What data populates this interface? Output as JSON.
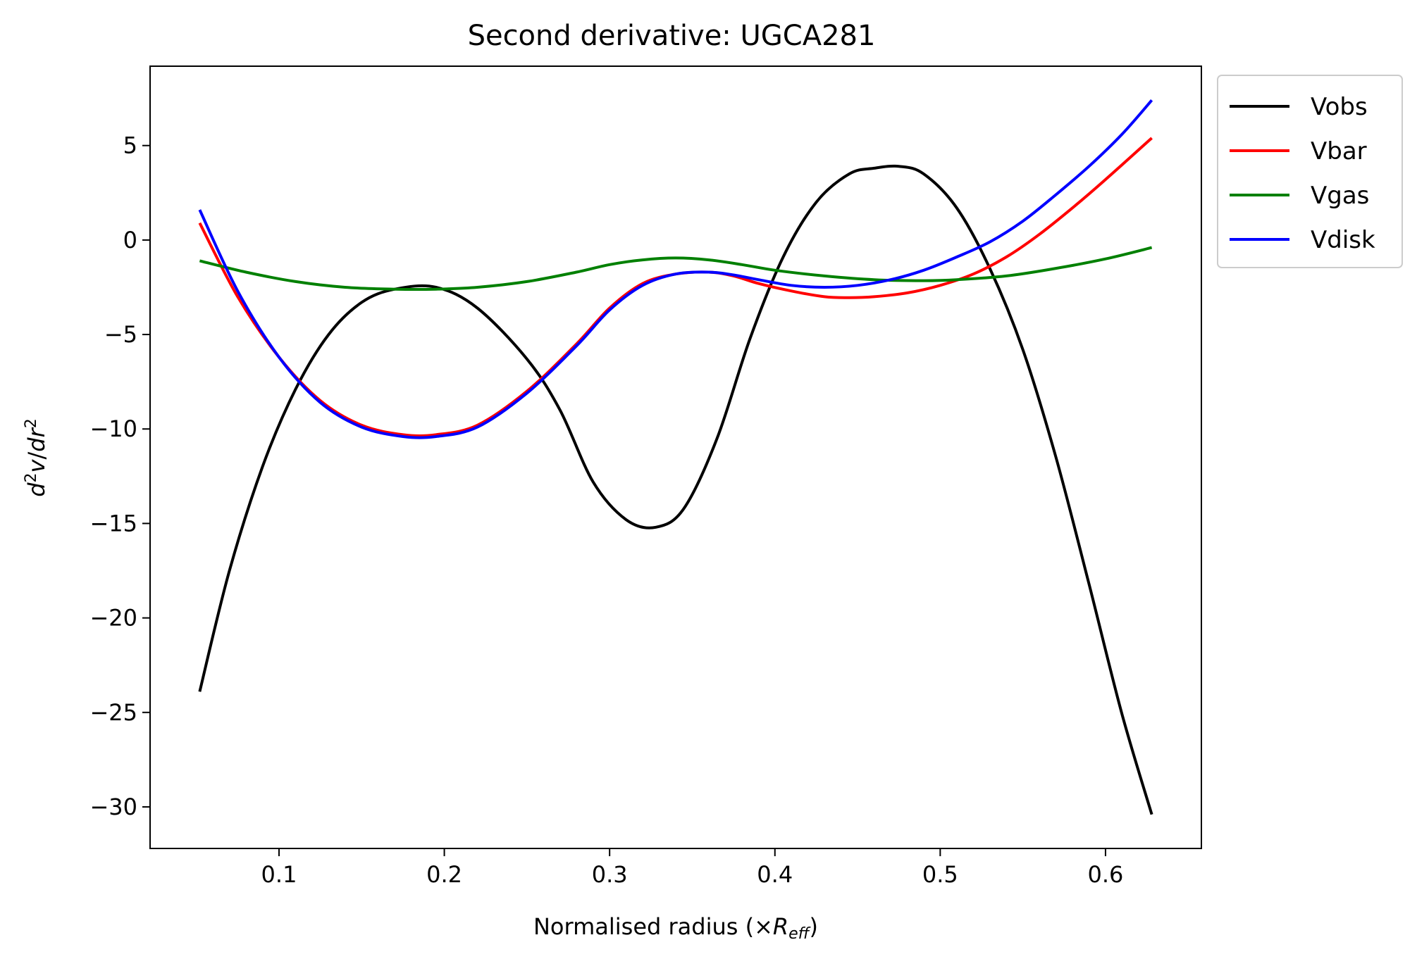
{
  "chart_data": {
    "type": "line",
    "title": "Second derivative: UGCA281",
    "xlabel": "Normalised radius (×R_eff)",
    "ylabel": "d²v/dr²",
    "xlim": [
      0.022,
      0.658
    ],
    "ylim": [
      -32.2,
      9.2
    ],
    "x_ticks": [
      0.1,
      0.2,
      0.3,
      0.4,
      0.5,
      0.6
    ],
    "y_ticks": [
      -30,
      -25,
      -20,
      -15,
      -10,
      -5,
      0,
      5
    ],
    "x_tick_labels": [
      "0.1",
      "0.2",
      "0.3",
      "0.4",
      "0.5",
      "0.6"
    ],
    "y_tick_labels": [
      "−30",
      "−25",
      "−20",
      "−15",
      "−10",
      "−5",
      "0",
      "5"
    ],
    "grid": false,
    "legend_position": "outside-top-right",
    "series": [
      {
        "name": "Vobs",
        "color": "#000000",
        "x": [
          0.052,
          0.07,
          0.09,
          0.11,
          0.13,
          0.15,
          0.17,
          0.195,
          0.22,
          0.25,
          0.27,
          0.29,
          0.31,
          0.328,
          0.345,
          0.365,
          0.385,
          0.405,
          0.425,
          0.445,
          0.46,
          0.475,
          0.49,
          0.51,
          0.53,
          0.55,
          0.57,
          0.59,
          0.61,
          0.628
        ],
        "y": [
          -23.9,
          -17.5,
          -12.0,
          -7.9,
          -5.0,
          -3.3,
          -2.6,
          -2.5,
          -3.6,
          -6.3,
          -9.0,
          -12.8,
          -14.8,
          -15.2,
          -14.2,
          -10.5,
          -5.2,
          -0.9,
          2.0,
          3.5,
          3.8,
          3.9,
          3.5,
          1.7,
          -1.5,
          -5.8,
          -11.5,
          -18.2,
          -25.1,
          -30.4
        ]
      },
      {
        "name": "Vbar",
        "color": "#ff0000",
        "x": [
          0.052,
          0.075,
          0.1,
          0.125,
          0.15,
          0.175,
          0.195,
          0.22,
          0.25,
          0.28,
          0.3,
          0.32,
          0.34,
          0.36,
          0.375,
          0.39,
          0.41,
          0.43,
          0.445,
          0.46,
          0.48,
          0.5,
          0.52,
          0.54,
          0.56,
          0.58,
          0.6,
          0.628
        ],
        "y": [
          0.9,
          -3.0,
          -6.2,
          -8.5,
          -9.8,
          -10.3,
          -10.3,
          -9.8,
          -8.0,
          -5.5,
          -3.6,
          -2.3,
          -1.8,
          -1.7,
          -1.9,
          -2.3,
          -2.7,
          -3.0,
          -3.05,
          -3.0,
          -2.8,
          -2.4,
          -1.8,
          -0.9,
          0.3,
          1.7,
          3.2,
          5.4
        ]
      },
      {
        "name": "Vgas",
        "color": "#008000",
        "x": [
          0.052,
          0.08,
          0.11,
          0.14,
          0.17,
          0.195,
          0.22,
          0.25,
          0.28,
          0.3,
          0.32,
          0.34,
          0.36,
          0.38,
          0.4,
          0.43,
          0.46,
          0.49,
          0.51,
          0.54,
          0.57,
          0.6,
          0.628
        ],
        "y": [
          -1.1,
          -1.7,
          -2.2,
          -2.5,
          -2.6,
          -2.6,
          -2.5,
          -2.2,
          -1.7,
          -1.3,
          -1.05,
          -0.95,
          -1.05,
          -1.3,
          -1.6,
          -1.9,
          -2.1,
          -2.15,
          -2.1,
          -1.9,
          -1.5,
          -1.0,
          -0.4
        ]
      },
      {
        "name": "Vdisk",
        "color": "#0000ff",
        "x": [
          0.052,
          0.075,
          0.1,
          0.125,
          0.15,
          0.175,
          0.195,
          0.22,
          0.25,
          0.28,
          0.3,
          0.32,
          0.34,
          0.36,
          0.375,
          0.39,
          0.41,
          0.43,
          0.45,
          0.47,
          0.49,
          0.51,
          0.53,
          0.55,
          0.57,
          0.59,
          0.61,
          0.628
        ],
        "y": [
          1.6,
          -2.7,
          -6.2,
          -8.6,
          -9.9,
          -10.4,
          -10.4,
          -9.9,
          -8.1,
          -5.6,
          -3.7,
          -2.4,
          -1.8,
          -1.7,
          -1.85,
          -2.1,
          -2.4,
          -2.5,
          -2.4,
          -2.1,
          -1.6,
          -0.9,
          -0.1,
          1.0,
          2.4,
          3.9,
          5.6,
          7.4
        ]
      }
    ]
  }
}
